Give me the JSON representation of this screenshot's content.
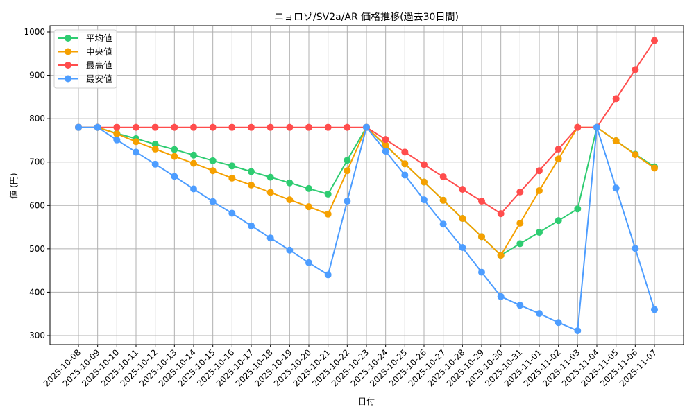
{
  "chart_data": {
    "type": "line",
    "title": "ニョロゾ/SV2a/AR 価格推移(過去30日間)",
    "xlabel": "日付",
    "ylabel": "値 (円)",
    "ylim": [
      278,
      1015
    ],
    "yticks": [
      300,
      400,
      500,
      600,
      700,
      800,
      900,
      1000
    ],
    "grid": true,
    "legend_position": "upper left",
    "x": [
      "2025-10-08",
      "2025-10-09",
      "2025-10-10",
      "2025-10-11",
      "2025-10-12",
      "2025-10-13",
      "2025-10-14",
      "2025-10-15",
      "2025-10-16",
      "2025-10-17",
      "2025-10-18",
      "2025-10-19",
      "2025-10-20",
      "2025-10-21",
      "2025-10-22",
      "2025-10-23",
      "2025-10-24",
      "2025-10-25",
      "2025-10-26",
      "2025-10-27",
      "2025-10-28",
      "2025-10-29",
      "2025-10-30",
      "2025-10-31",
      "2025-11-01",
      "2025-11-02",
      "2025-11-03",
      "2025-11-04",
      "2025-11-05",
      "2025-11-06",
      "2025-11-07"
    ],
    "series": [
      {
        "name": "平均値",
        "color": "#2ecc71",
        "values": [
          780,
          780,
          766,
          754,
          741,
          729,
          716,
          703,
          691,
          678,
          665,
          652,
          639,
          626,
          704,
          780,
          738,
          696,
          654,
          612,
          570,
          528,
          485,
          512,
          538,
          565,
          592,
          780,
          749,
          718,
          689
        ]
      },
      {
        "name": "中央値",
        "color": "#f5a000",
        "values": [
          780,
          780,
          765,
          747,
          730,
          713,
          697,
          680,
          663,
          647,
          630,
          613,
          597,
          580,
          680,
          780,
          739,
          696,
          654,
          612,
          570,
          528,
          485,
          559,
          634,
          707,
          780,
          780,
          749,
          717,
          686
        ]
      },
      {
        "name": "最高値",
        "color": "#ff4d4d",
        "values": [
          780,
          780,
          780,
          780,
          780,
          780,
          780,
          780,
          780,
          780,
          780,
          780,
          780,
          780,
          780,
          780,
          752,
          723,
          694,
          666,
          637,
          610,
          581,
          631,
          680,
          730,
          780,
          780,
          846,
          913,
          980
        ]
      },
      {
        "name": "最安値",
        "color": "#4d9dff",
        "values": [
          780,
          780,
          751,
          723,
          695,
          667,
          638,
          609,
          582,
          553,
          525,
          497,
          468,
          440,
          610,
          780,
          725,
          670,
          613,
          557,
          503,
          446,
          390,
          370,
          351,
          330,
          311,
          780,
          640,
          501,
          360
        ]
      }
    ]
  }
}
